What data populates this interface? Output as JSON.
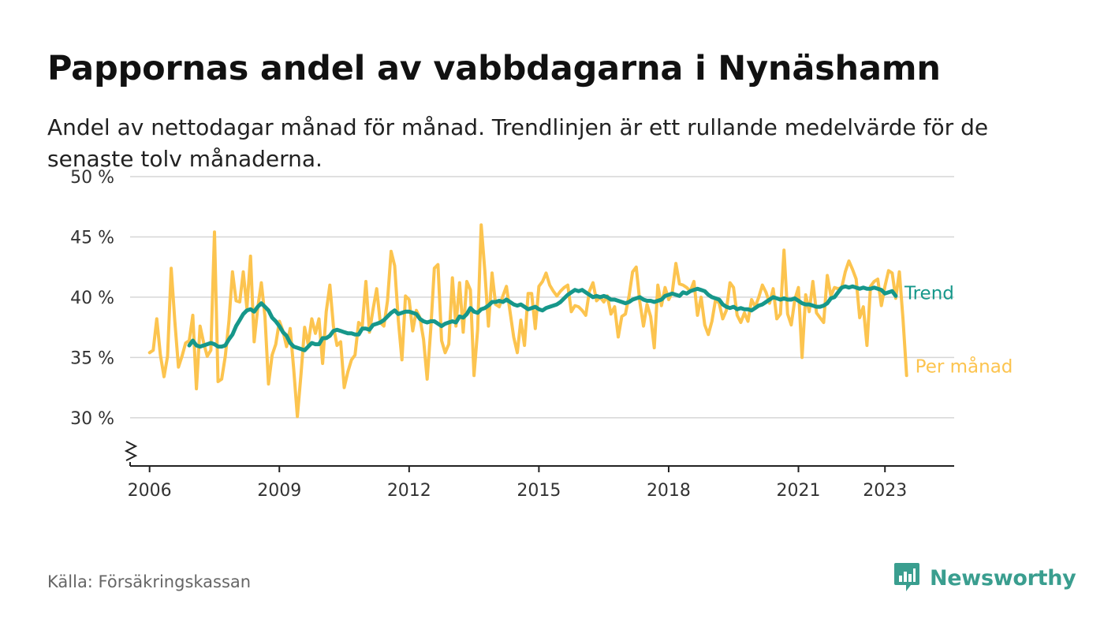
{
  "title": "Pappornas andel av vabbdagarna i Nynäshamn",
  "subtitle": "Andel av nettodagar månad för månad. Trendlinjen är ett rullande medelvärde för de senaste tolv månaderna.",
  "source": "Källa: Försäkringskassan",
  "brand": {
    "name": "Newsworthy",
    "icon": "newsworthy-logo-icon",
    "color": "#3a9e8f"
  },
  "chart_data": {
    "type": "line",
    "title": "Pappornas andel av vabbdagarna i Nynäshamn",
    "xlabel": "",
    "ylabel": "",
    "x_start": "2006-01",
    "x_end": "2023-04",
    "xlim": [
      2005.55,
      2024.6
    ],
    "ylim": [
      26,
      50
    ],
    "y_axis_break": true,
    "grid": true,
    "legend": "inline-right",
    "x_ticks": [
      "2006",
      "2009",
      "2012",
      "2015",
      "2018",
      "2021",
      "2023"
    ],
    "y_ticks": [
      {
        "value": 30,
        "label": "30 %"
      },
      {
        "value": 35,
        "label": "35 %"
      },
      {
        "value": 40,
        "label": "40 %"
      },
      {
        "value": 45,
        "label": "45 %"
      },
      {
        "value": 50,
        "label": "50 %"
      }
    ],
    "series": [
      {
        "name": "Per månad",
        "color": "#fcc44f",
        "values": [
          35.4,
          35.6,
          38.2,
          35.2,
          33.4,
          35.1,
          42.4,
          38.0,
          34.2,
          35.1,
          36.2,
          36.4,
          38.5,
          32.4,
          37.6,
          36.2,
          35.1,
          35.6,
          45.4,
          33.0,
          33.2,
          35.1,
          38.0,
          42.1,
          39.7,
          39.6,
          42.1,
          39.1,
          43.4,
          36.3,
          39.1,
          41.2,
          38.4,
          32.8,
          35.2,
          36.1,
          38.0,
          37.2,
          35.9,
          37.4,
          34.0,
          30.1,
          33.6,
          37.5,
          36.1,
          38.2,
          37.0,
          38.2,
          34.5,
          38.8,
          41.0,
          37.6,
          36.0,
          36.3,
          32.5,
          33.8,
          34.8,
          35.2,
          37.9,
          37.6,
          41.3,
          37.1,
          39.0,
          40.7,
          37.9,
          37.6,
          39.7,
          43.8,
          42.6,
          38.1,
          34.8,
          40.1,
          39.8,
          37.2,
          38.9,
          38.3,
          36.5,
          33.2,
          37.3,
          42.4,
          42.7,
          36.4,
          35.4,
          36.1,
          41.6,
          37.6,
          41.2,
          37.1,
          41.3,
          40.6,
          33.5,
          37.3,
          46.0,
          42.2,
          37.6,
          42.0,
          39.4,
          39.2,
          40.1,
          40.9,
          38.8,
          36.7,
          35.4,
          38.1,
          36.0,
          40.3,
          40.3,
          37.4,
          40.9,
          41.3,
          42.0,
          41.0,
          40.5,
          40.1,
          40.5,
          40.8,
          41.0,
          38.8,
          39.3,
          39.2,
          38.9,
          38.5,
          40.5,
          41.2,
          39.7,
          40.0,
          39.6,
          40.1,
          38.6,
          39.2,
          36.7,
          38.4,
          38.6,
          40.1,
          42.1,
          42.5,
          39.6,
          37.6,
          39.4,
          38.4,
          35.8,
          41.0,
          39.3,
          40.8,
          39.8,
          40.4,
          42.8,
          41.1,
          41.0,
          40.8,
          40.5,
          41.3,
          38.5,
          40.0,
          37.7,
          36.9,
          38.0,
          39.8,
          39.5,
          38.2,
          38.9,
          41.2,
          40.8,
          38.5,
          37.9,
          38.7,
          38.0,
          39.8,
          39.2,
          40.0,
          41.0,
          40.4,
          39.5,
          40.7,
          38.2,
          38.6,
          43.9,
          38.6,
          37.7,
          39.8,
          40.8,
          35.0,
          40.2,
          38.8,
          41.3,
          38.7,
          38.3,
          37.9,
          41.8,
          40.1,
          40.8,
          40.7,
          40.8,
          42.1,
          43.0,
          42.3,
          41.5,
          38.3,
          39.2,
          36.0,
          40.9,
          41.3,
          41.5,
          39.3,
          40.9,
          42.2,
          42.0,
          39.9,
          42.1,
          38.2,
          33.5
        ]
      },
      {
        "name": "Trend",
        "color": "#16978a",
        "start": "2006-12",
        "values": [
          36.0,
          36.4,
          36.0,
          35.9,
          36.0,
          36.1,
          36.2,
          36.1,
          35.9,
          35.9,
          36.0,
          36.5,
          36.9,
          37.6,
          38.1,
          38.6,
          38.9,
          39.0,
          38.8,
          39.2,
          39.5,
          39.2,
          38.9,
          38.3,
          38.0,
          37.6,
          37.1,
          36.8,
          36.2,
          35.9,
          35.8,
          35.7,
          35.6,
          35.9,
          36.2,
          36.1,
          36.1,
          36.6,
          36.6,
          36.8,
          37.2,
          37.3,
          37.2,
          37.1,
          37.0,
          37.0,
          36.9,
          36.9,
          37.4,
          37.4,
          37.3,
          37.7,
          37.8,
          37.9,
          38.1,
          38.4,
          38.7,
          38.9,
          38.6,
          38.7,
          38.8,
          38.8,
          38.7,
          38.6,
          38.2,
          38.0,
          37.9,
          38.0,
          38.0,
          37.8,
          37.6,
          37.8,
          37.9,
          38.0,
          37.9,
          38.4,
          38.3,
          38.6,
          39.1,
          38.8,
          38.7,
          39.0,
          39.1,
          39.3,
          39.6,
          39.6,
          39.7,
          39.6,
          39.8,
          39.6,
          39.4,
          39.3,
          39.4,
          39.2,
          39.0,
          39.1,
          39.2,
          39.0,
          38.9,
          39.1,
          39.2,
          39.3,
          39.4,
          39.6,
          39.9,
          40.2,
          40.4,
          40.6,
          40.5,
          40.6,
          40.4,
          40.2,
          40.0,
          40.1,
          40.0,
          40.1,
          40.0,
          39.8,
          39.8,
          39.7,
          39.6,
          39.5,
          39.6,
          39.8,
          39.9,
          40.0,
          39.8,
          39.7,
          39.7,
          39.6,
          39.7,
          39.8,
          40.1,
          40.2,
          40.3,
          40.2,
          40.1,
          40.4,
          40.3,
          40.5,
          40.6,
          40.7,
          40.6,
          40.5,
          40.2,
          40.0,
          39.9,
          39.8,
          39.4,
          39.2,
          39.1,
          39.2,
          39.0,
          39.1,
          39.0,
          39.0,
          38.9,
          39.1,
          39.3,
          39.4,
          39.6,
          39.8,
          40.0,
          39.9,
          39.8,
          39.9,
          39.8,
          39.8,
          39.9,
          39.7,
          39.5,
          39.4,
          39.4,
          39.3,
          39.2,
          39.2,
          39.3,
          39.5,
          39.9,
          40.0,
          40.4,
          40.8,
          40.9,
          40.8,
          40.9,
          40.8,
          40.7,
          40.8,
          40.7,
          40.7,
          40.8,
          40.7,
          40.6,
          40.3,
          40.4,
          40.5,
          40.1
        ]
      }
    ]
  }
}
